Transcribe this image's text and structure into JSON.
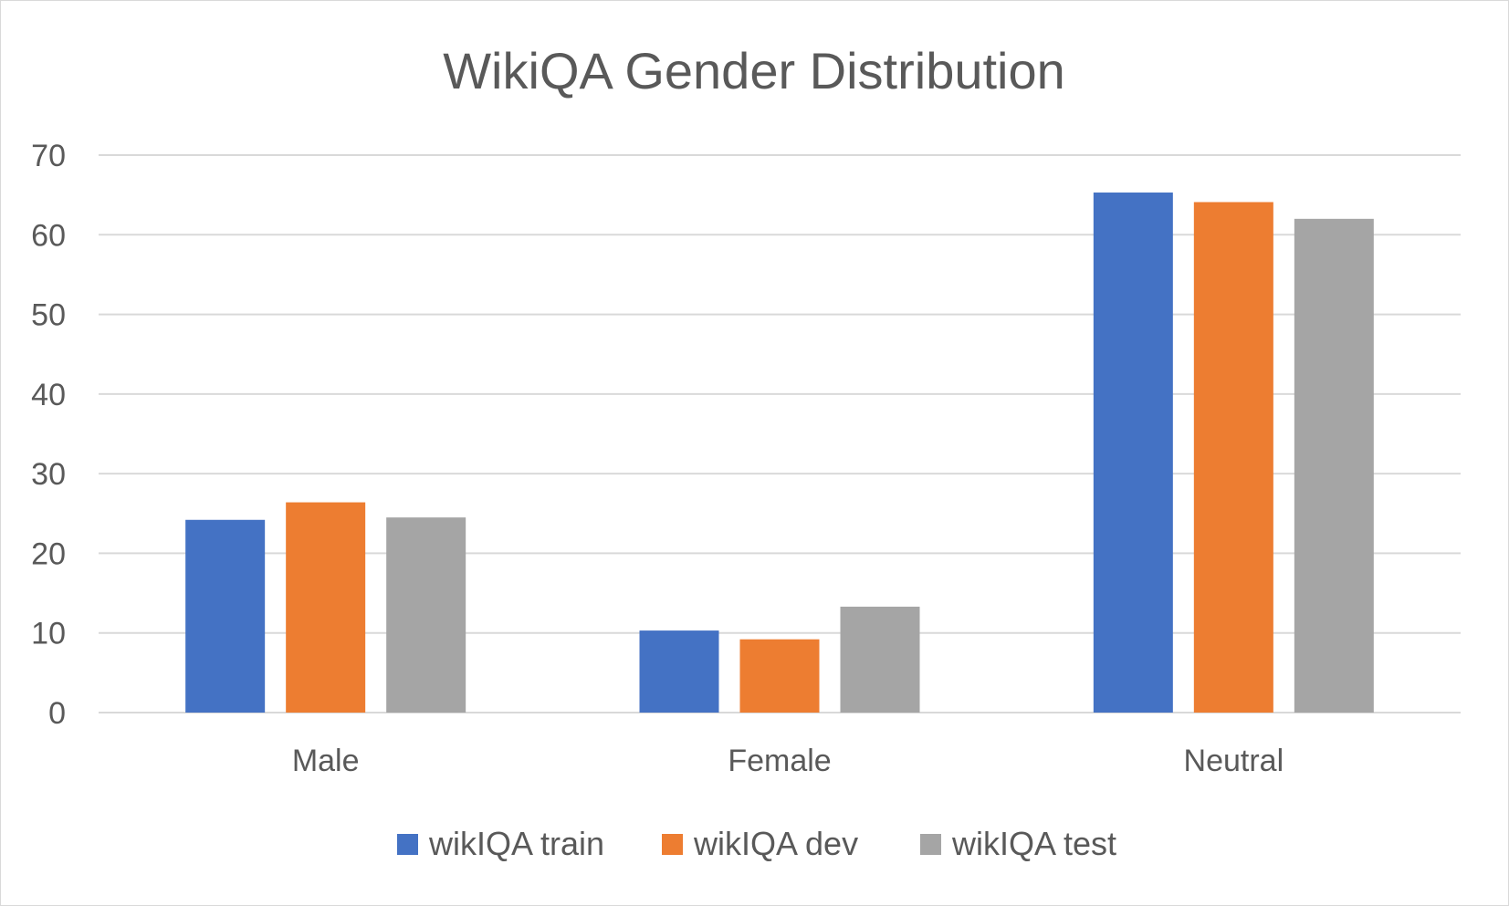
{
  "chart_data": {
    "type": "bar",
    "title": "WikiQA Gender Distribution",
    "xlabel": "",
    "ylabel": "",
    "categories": [
      "Male",
      "Female",
      "Neutral"
    ],
    "series": [
      {
        "name": "wikIQA train",
        "color": "#4472c4",
        "values": [
          24.2,
          10.3,
          65.3
        ]
      },
      {
        "name": "wikIQA dev",
        "color": "#ed7d31",
        "values": [
          26.4,
          9.2,
          64.1
        ]
      },
      {
        "name": "wikIQA test",
        "color": "#a5a5a5",
        "values": [
          24.5,
          13.3,
          62.0
        ]
      }
    ],
    "ylim": [
      0,
      70
    ],
    "yticks": [
      0,
      10,
      20,
      30,
      40,
      50,
      60,
      70
    ],
    "grid": true,
    "legend": "bottom"
  }
}
